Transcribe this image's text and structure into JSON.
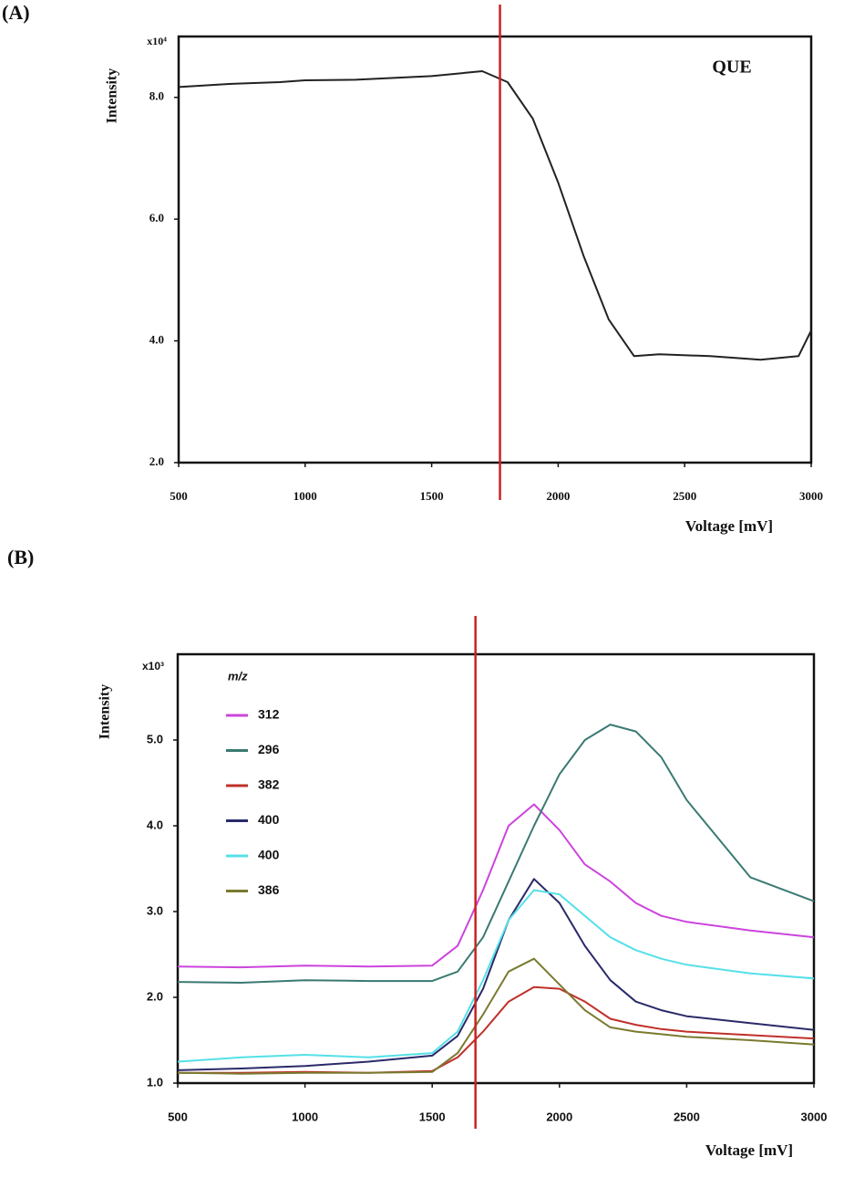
{
  "chart_data": [
    {
      "type": "line",
      "panel_label": "(A)",
      "annotation": "QUE",
      "y_multiplier": "x10⁴",
      "xlabel": "Voltage [mV]",
      "ylabel": "Intensity",
      "x": [
        500,
        700,
        900,
        1000,
        1200,
        1500,
        1700,
        1800,
        1900,
        2000,
        2100,
        2200,
        2300,
        2400,
        2600,
        2800,
        2950,
        3000
      ],
      "series": [
        {
          "name": "QUE",
          "color": "#222222",
          "values": [
            8.17,
            8.22,
            8.25,
            8.28,
            8.29,
            8.35,
            8.43,
            8.25,
            7.65,
            6.6,
            5.4,
            4.35,
            3.75,
            3.78,
            3.75,
            3.69,
            3.75,
            4.17
          ]
        }
      ],
      "vline": 1770,
      "vline_color": "#cc2222",
      "xlim": [
        500,
        3000
      ],
      "xticks": [
        500,
        1000,
        1500,
        2000,
        2500,
        3000
      ],
      "ylim": [
        2,
        9
      ],
      "yticks": [
        {
          "value": 2,
          "label": "2.0"
        },
        {
          "value": 4,
          "label": "4.0"
        },
        {
          "value": 6,
          "label": "6.0"
        },
        {
          "value": 8,
          "label": "8.0"
        }
      ]
    },
    {
      "type": "line",
      "panel_label": "(B)",
      "y_multiplier": "x10³",
      "legend_title": "m/z",
      "xlabel": "Voltage [mV]",
      "ylabel": "Intensity",
      "x": [
        500,
        750,
        1000,
        1250,
        1500,
        1600,
        1700,
        1800,
        1900,
        2000,
        2100,
        2200,
        2300,
        2400,
        2500,
        2750,
        3000
      ],
      "series": [
        {
          "name": "312",
          "color": "#cc44dd",
          "values": [
            2.36,
            2.35,
            2.37,
            2.36,
            2.37,
            2.6,
            3.25,
            4.0,
            4.25,
            3.95,
            3.55,
            3.35,
            3.1,
            2.95,
            2.88,
            2.78,
            2.7
          ]
        },
        {
          "name": "296",
          "color": "#3a7a72",
          "values": [
            2.18,
            2.17,
            2.2,
            2.19,
            2.19,
            2.3,
            2.7,
            3.35,
            4.0,
            4.6,
            5.0,
            5.18,
            5.1,
            4.8,
            4.3,
            3.4,
            3.12
          ]
        },
        {
          "name": "382",
          "color": "#c0302a",
          "values": [
            1.12,
            1.12,
            1.13,
            1.12,
            1.14,
            1.3,
            1.6,
            1.95,
            2.12,
            2.1,
            1.95,
            1.75,
            1.68,
            1.63,
            1.6,
            1.56,
            1.52
          ]
        },
        {
          "name": "400",
          "color": "#2a2a6a",
          "values": [
            1.15,
            1.17,
            1.2,
            1.25,
            1.32,
            1.55,
            2.1,
            2.9,
            3.38,
            3.1,
            2.6,
            2.2,
            1.95,
            1.85,
            1.78,
            1.7,
            1.62
          ]
        },
        {
          "name": "400",
          "color": "#55e0e8",
          "values": [
            1.25,
            1.3,
            1.33,
            1.3,
            1.35,
            1.6,
            2.2,
            2.9,
            3.25,
            3.2,
            2.95,
            2.7,
            2.55,
            2.45,
            2.38,
            2.28,
            2.22
          ]
        },
        {
          "name": "386",
          "color": "#7a7a30",
          "values": [
            1.12,
            1.11,
            1.12,
            1.12,
            1.13,
            1.35,
            1.8,
            2.3,
            2.45,
            2.15,
            1.85,
            1.65,
            1.6,
            1.57,
            1.54,
            1.5,
            1.45
          ]
        }
      ],
      "vline": 1670,
      "vline_color": "#cc2222",
      "xlim": [
        500,
        3000
      ],
      "xticks": [
        500,
        1000,
        1500,
        2000,
        2500,
        3000
      ],
      "ylim": [
        1,
        6
      ],
      "yticks": [
        {
          "value": 1,
          "label": "1.0"
        },
        {
          "value": 2,
          "label": "2.0"
        },
        {
          "value": 3,
          "label": "3.0"
        },
        {
          "value": 4,
          "label": "4.0"
        },
        {
          "value": 5,
          "label": "5.0"
        }
      ]
    }
  ]
}
